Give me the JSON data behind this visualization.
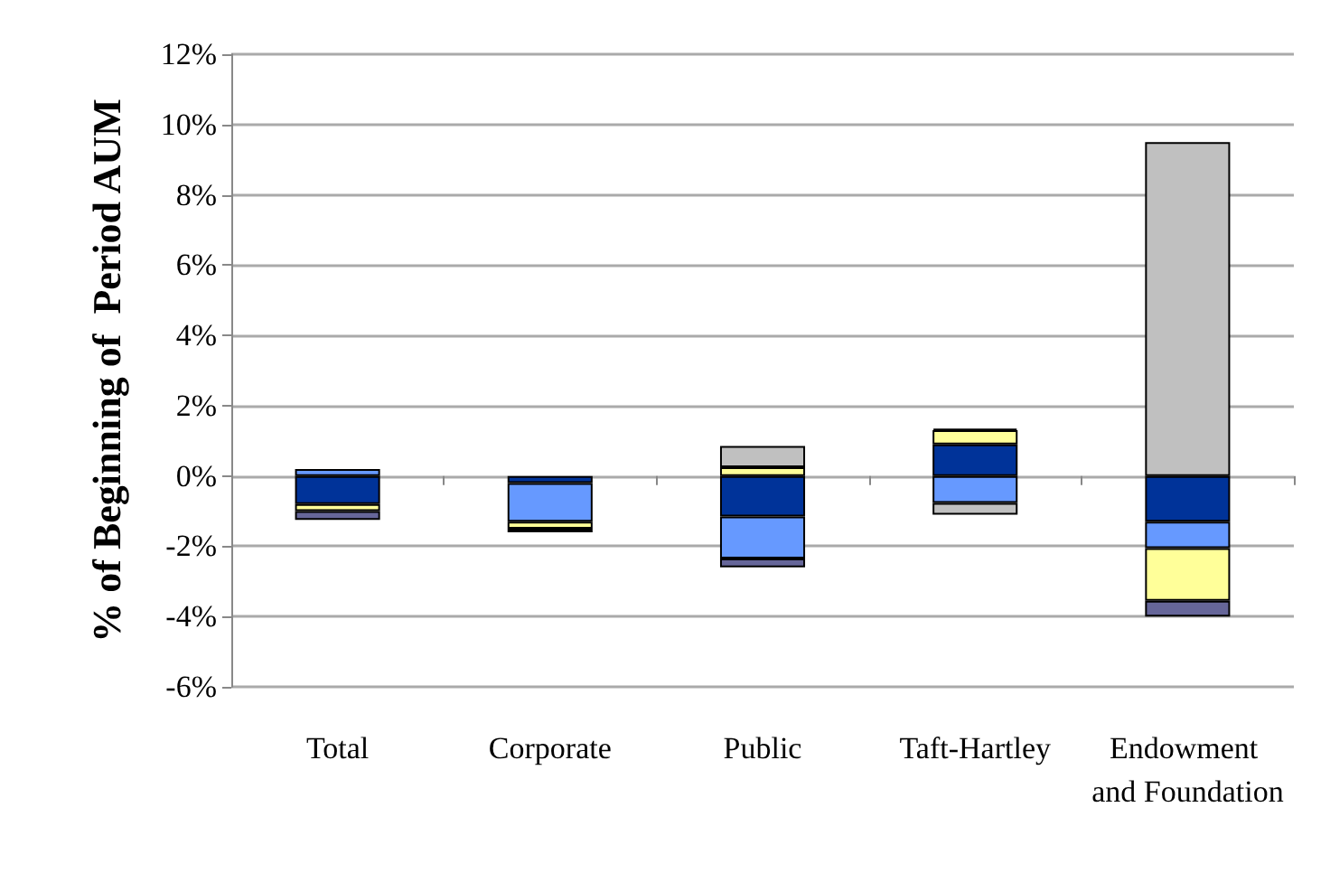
{
  "chart_data": {
    "type": "bar",
    "stacked": true,
    "ylabel": "% of Beginning of  Period AUM",
    "categories": [
      "Total",
      "Corporate",
      "Public",
      "Taft-Hartley",
      "Endowment and Foundation"
    ],
    "series": [
      {
        "color": "#003399",
        "values": [
          -0.8,
          -0.2,
          -1.15,
          0.9,
          -1.3
        ]
      },
      {
        "color": "#6699ff",
        "values": [
          0.2,
          -1.1,
          -1.2,
          -0.77,
          -0.75
        ]
      },
      {
        "color": "#ffff99",
        "values": [
          -0.2,
          -0.2,
          0.25,
          0.4,
          -1.5
        ]
      },
      {
        "color": "#c0c0c0",
        "values": [
          null,
          null,
          0.6,
          -0.33,
          9.5
        ]
      },
      {
        "color": "#666699",
        "values": [
          -0.25,
          null,
          -0.25,
          null,
          -0.45
        ]
      },
      {
        "color": "#000000",
        "values": [
          null,
          -0.1,
          null,
          0.05,
          null
        ]
      }
    ],
    "ylim": [
      -6,
      12
    ],
    "yticks": [
      {
        "value": -6,
        "label": "-6%"
      },
      {
        "value": -4,
        "label": "-4%"
      },
      {
        "value": -2,
        "label": "-2%"
      },
      {
        "value": 0,
        "label": "0%"
      },
      {
        "value": 2,
        "label": "2%"
      },
      {
        "value": 4,
        "label": "4%"
      },
      {
        "value": 6,
        "label": "6%"
      },
      {
        "value": 8,
        "label": "8%"
      },
      {
        "value": 10,
        "label": "10%"
      },
      {
        "value": 12,
        "label": "12%"
      }
    ],
    "grid": "y"
  }
}
